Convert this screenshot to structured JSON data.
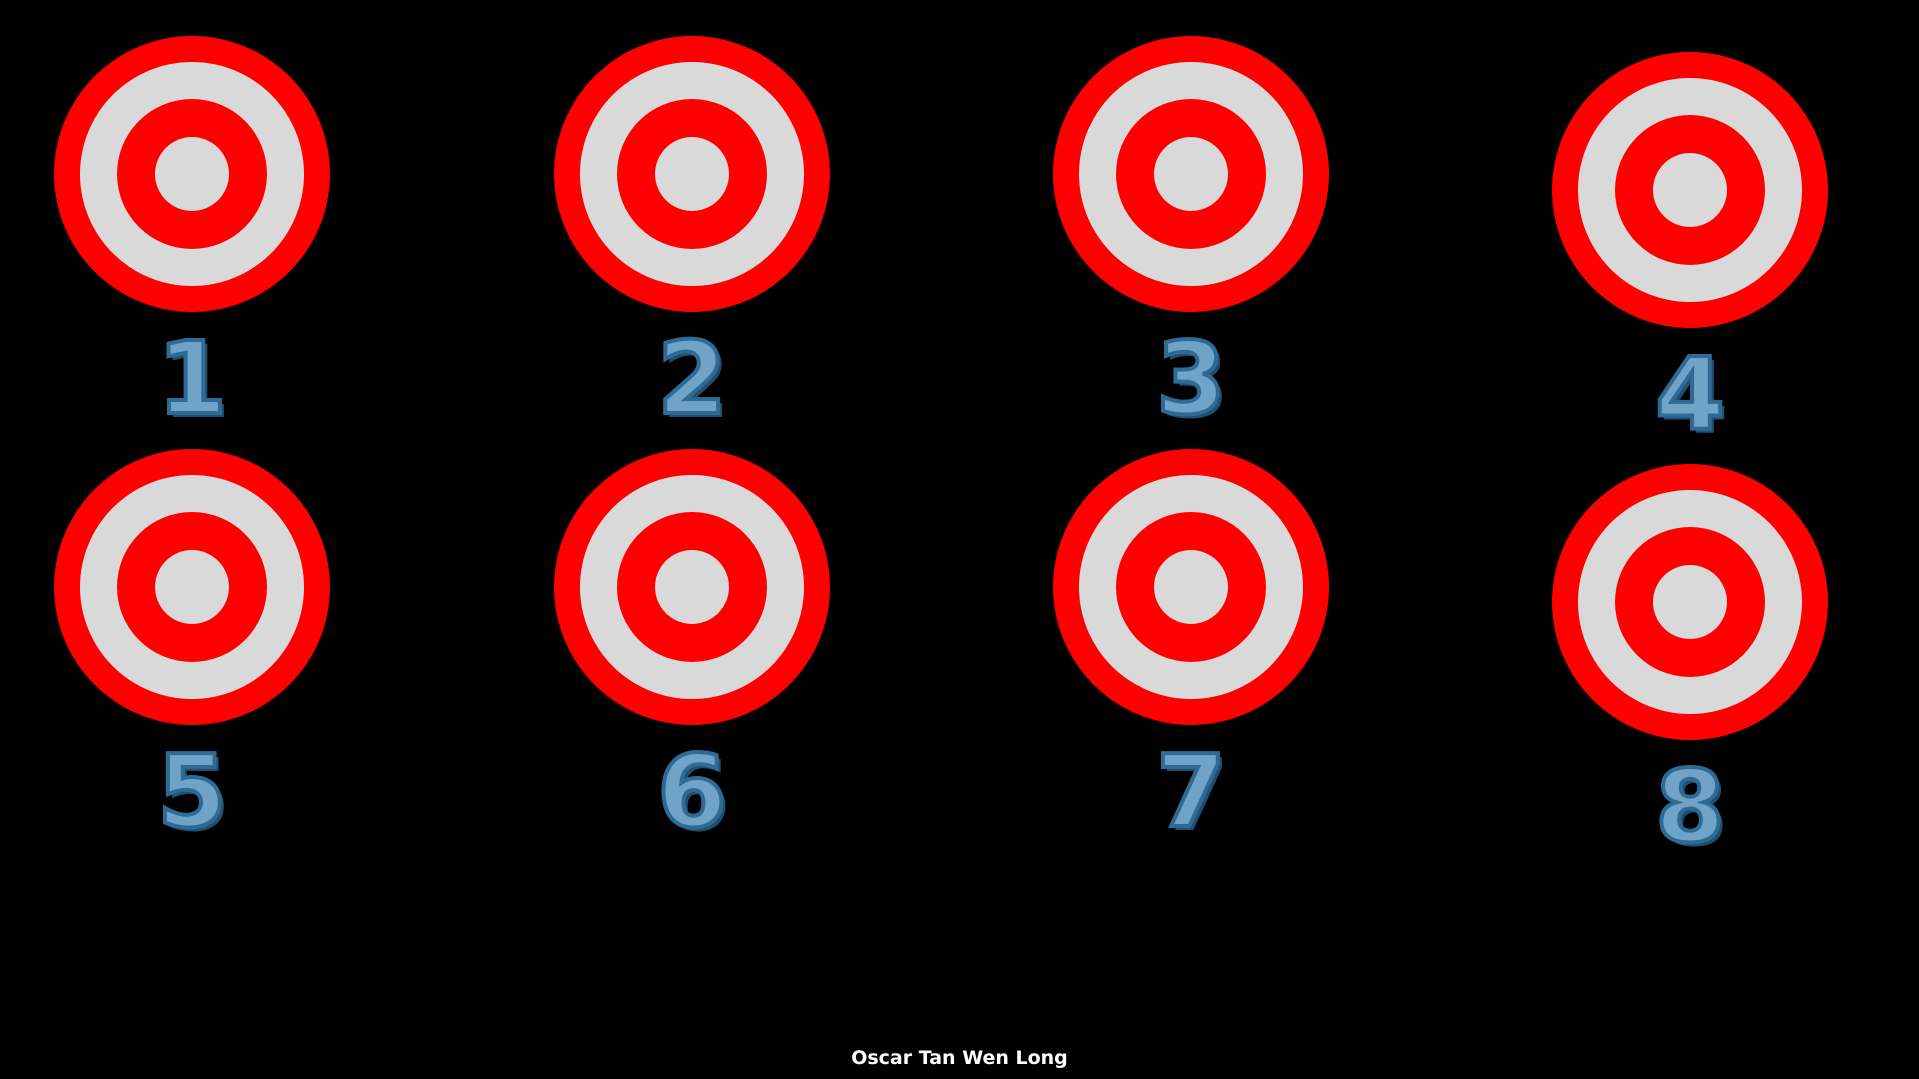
{
  "colors": {
    "background": "#000000",
    "ring_outer": "#ff0000",
    "ring_light": "#d9d9d9",
    "number_fill": "#6fa3c7",
    "number_outline": "#2e6a94",
    "credit_text": "#ffffff"
  },
  "targets": [
    {
      "number": "1",
      "icon": "bullseye-icon"
    },
    {
      "number": "2",
      "icon": "bullseye-icon"
    },
    {
      "number": "3",
      "icon": "bullseye-icon"
    },
    {
      "number": "4",
      "icon": "bullseye-icon"
    },
    {
      "number": "5",
      "icon": "bullseye-icon"
    },
    {
      "number": "6",
      "icon": "bullseye-icon"
    },
    {
      "number": "7",
      "icon": "bullseye-icon"
    },
    {
      "number": "8",
      "icon": "bullseye-icon"
    }
  ],
  "footer": {
    "credit": "Oscar Tan Wen Long"
  }
}
